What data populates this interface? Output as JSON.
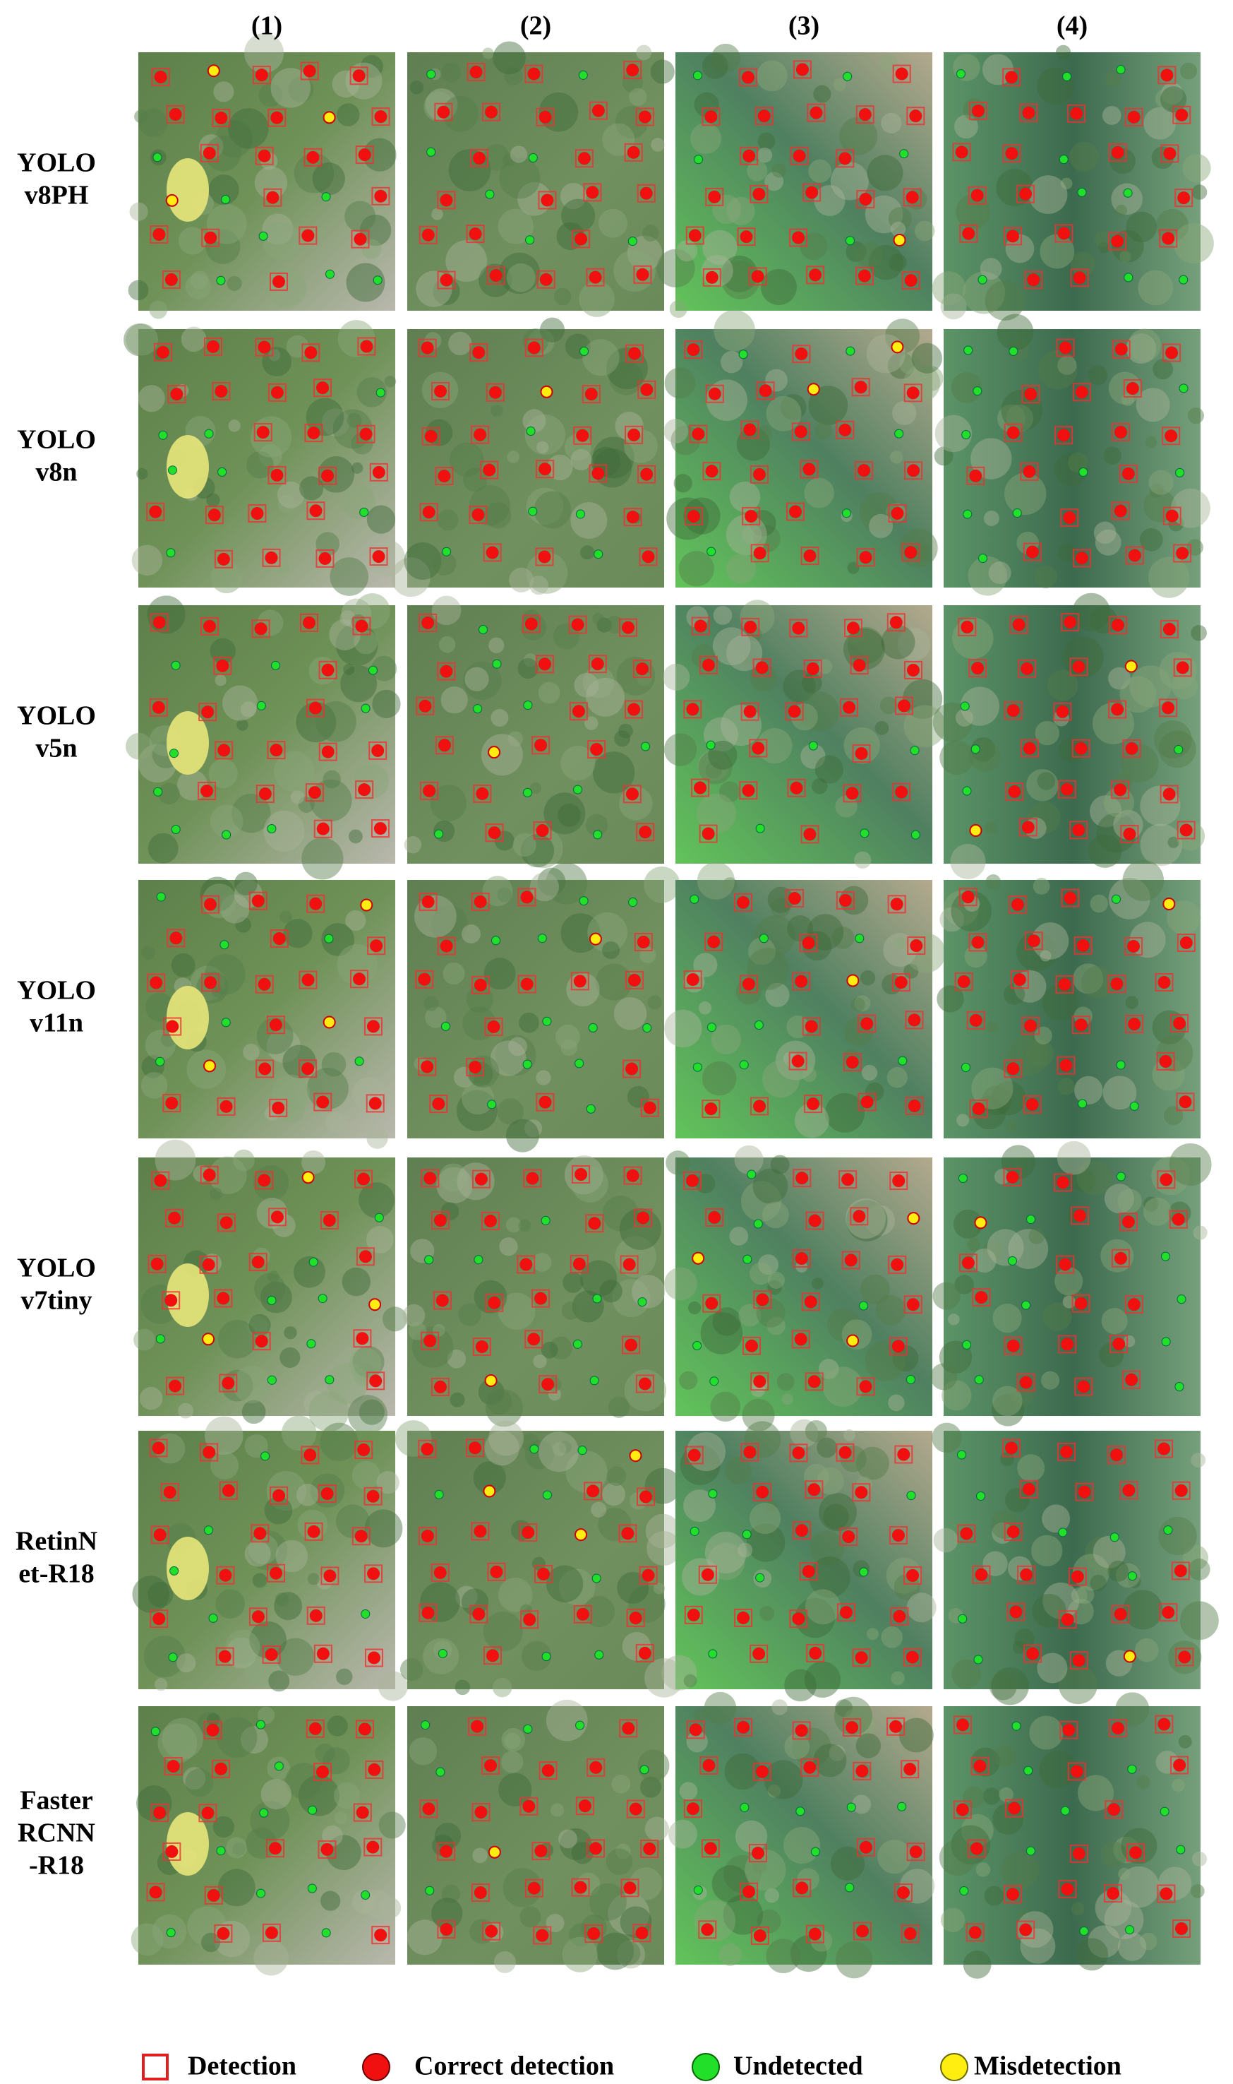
{
  "columns": [
    "(1)",
    "(2)",
    "(3)",
    "(4)"
  ],
  "rows": [
    [
      "YOLO",
      "v8PH"
    ],
    [
      "YOLO",
      "v8n"
    ],
    [
      "YOLO",
      "v5n"
    ],
    [
      "YOLO",
      "v11n"
    ],
    [
      "YOLO",
      "v7tiny"
    ],
    [
      "RetinN",
      "et-R18"
    ],
    [
      "Faster",
      "RCNN",
      "-R18"
    ]
  ],
  "legend": [
    "Detection",
    "Correct detection",
    "Undetected",
    "Misdetection"
  ]
}
